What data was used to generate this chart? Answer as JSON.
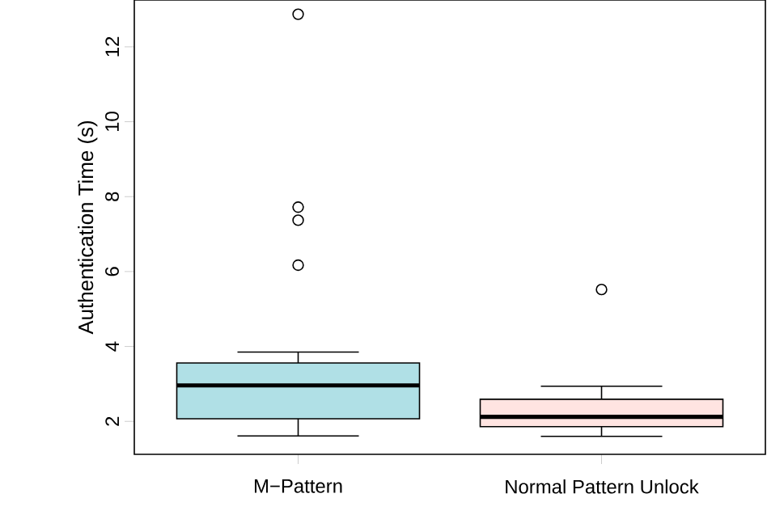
{
  "chart_data": {
    "type": "box",
    "ylabel": "Authentication Time (s)",
    "categories": [
      "M−Pattern",
      "Normal Pattern Unlock"
    ],
    "colors": [
      "#b0e0e6",
      "#ffe4e1"
    ],
    "boxes": [
      {
        "low": 1.61,
        "q1": 2.07,
        "median": 2.96,
        "q3": 3.56,
        "high": 3.85,
        "outliers": [
          6.17,
          7.37,
          7.72,
          12.87
        ]
      },
      {
        "low": 1.6,
        "q1": 1.86,
        "median": 2.12,
        "q3": 2.59,
        "high": 2.94,
        "outliers": [
          5.52
        ]
      }
    ],
    "ylim": [
      1.12,
      13.25
    ],
    "yticks": [
      2,
      4,
      6,
      8,
      10,
      12
    ]
  }
}
